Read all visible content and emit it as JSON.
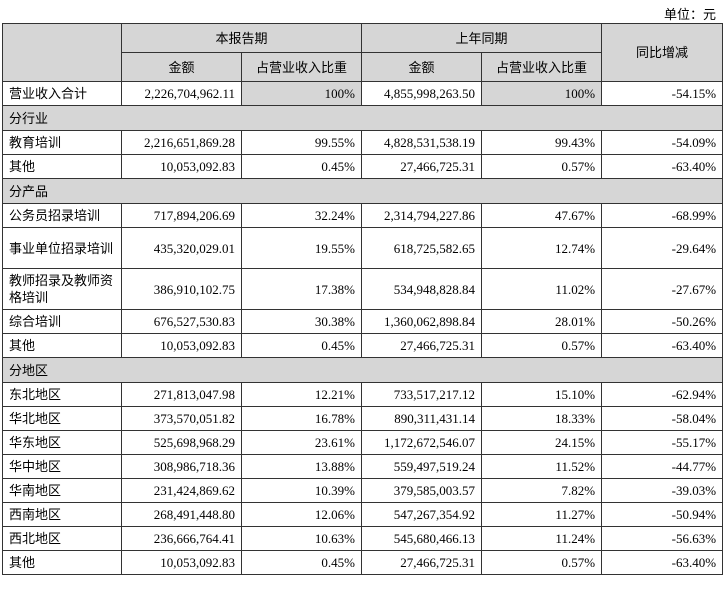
{
  "unit_label": "单位：元",
  "header": {
    "current_period": "本报告期",
    "prior_period": "上年同期",
    "yoy_change": "同比增减",
    "amount": "金额",
    "ratio": "占营业收入比重"
  },
  "total": {
    "label": "营业收入合计",
    "cur_amount": "2,226,704,962.11",
    "cur_ratio": "100%",
    "prev_amount": "4,855,998,263.50",
    "prev_ratio": "100%",
    "yoy": "-54.15%"
  },
  "sections": [
    {
      "title": "分行业",
      "rows": [
        {
          "label": "教育培训",
          "cur_amount": "2,216,651,869.28",
          "cur_ratio": "99.55%",
          "prev_amount": "4,828,531,538.19",
          "prev_ratio": "99.43%",
          "yoy": "-54.09%"
        },
        {
          "label": "其他",
          "cur_amount": "10,053,092.83",
          "cur_ratio": "0.45%",
          "prev_amount": "27,466,725.31",
          "prev_ratio": "0.57%",
          "yoy": "-63.40%"
        }
      ]
    },
    {
      "title": "分产品",
      "rows": [
        {
          "label": "公务员招录培训",
          "cur_amount": "717,894,206.69",
          "cur_ratio": "32.24%",
          "prev_amount": "2,314,794,227.86",
          "prev_ratio": "47.67%",
          "yoy": "-68.99%"
        },
        {
          "label": "事业单位招录培训",
          "cur_amount": "435,320,029.01",
          "cur_ratio": "19.55%",
          "prev_amount": "618,725,582.65",
          "prev_ratio": "12.74%",
          "yoy": "-29.64%"
        },
        {
          "label": "教师招录及教师资格培训",
          "cur_amount": "386,910,102.75",
          "cur_ratio": "17.38%",
          "prev_amount": "534,948,828.84",
          "prev_ratio": "11.02%",
          "yoy": "-27.67%"
        },
        {
          "label": "综合培训",
          "cur_amount": "676,527,530.83",
          "cur_ratio": "30.38%",
          "prev_amount": "1,360,062,898.84",
          "prev_ratio": "28.01%",
          "yoy": "-50.26%"
        },
        {
          "label": "其他",
          "cur_amount": "10,053,092.83",
          "cur_ratio": "0.45%",
          "prev_amount": "27,466,725.31",
          "prev_ratio": "0.57%",
          "yoy": "-63.40%"
        }
      ]
    },
    {
      "title": "分地区",
      "rows": [
        {
          "label": "东北地区",
          "cur_amount": "271,813,047.98",
          "cur_ratio": "12.21%",
          "prev_amount": "733,517,217.12",
          "prev_ratio": "15.10%",
          "yoy": "-62.94%"
        },
        {
          "label": "华北地区",
          "cur_amount": "373,570,051.82",
          "cur_ratio": "16.78%",
          "prev_amount": "890,311,431.14",
          "prev_ratio": "18.33%",
          "yoy": "-58.04%"
        },
        {
          "label": "华东地区",
          "cur_amount": "525,698,968.29",
          "cur_ratio": "23.61%",
          "prev_amount": "1,172,672,546.07",
          "prev_ratio": "24.15%",
          "yoy": "-55.17%"
        },
        {
          "label": "华中地区",
          "cur_amount": "308,986,718.36",
          "cur_ratio": "13.88%",
          "prev_amount": "559,497,519.24",
          "prev_ratio": "11.52%",
          "yoy": "-44.77%"
        },
        {
          "label": "华南地区",
          "cur_amount": "231,424,869.62",
          "cur_ratio": "10.39%",
          "prev_amount": "379,585,003.57",
          "prev_ratio": "7.82%",
          "yoy": "-39.03%"
        },
        {
          "label": "西南地区",
          "cur_amount": "268,491,448.80",
          "cur_ratio": "12.06%",
          "prev_amount": "547,267,354.92",
          "prev_ratio": "11.27%",
          "yoy": "-50.94%"
        },
        {
          "label": "西北地区",
          "cur_amount": "236,666,764.41",
          "cur_ratio": "10.63%",
          "prev_amount": "545,680,466.13",
          "prev_ratio": "11.24%",
          "yoy": "-56.63%"
        },
        {
          "label": "其他",
          "cur_amount": "10,053,092.83",
          "cur_ratio": "0.45%",
          "prev_amount": "27,466,725.31",
          "prev_ratio": "0.57%",
          "yoy": "-63.40%"
        }
      ]
    }
  ]
}
